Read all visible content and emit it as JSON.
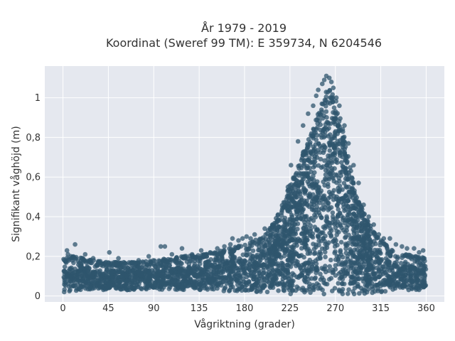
{
  "chart_data": {
    "type": "scatter",
    "title_line1": "År 1979 - 2019",
    "title_line2": "Koordinat (Sweref 99 TM): E 359734, N 6204546",
    "xlabel": "Vågriktning (grader)",
    "ylabel": "Signifikant våghöjd (m)",
    "xlim": [
      -18,
      378
    ],
    "ylim": [
      -0.03,
      1.16
    ],
    "xticks": [
      {
        "value": 0,
        "label": "0"
      },
      {
        "value": 45,
        "label": "45"
      },
      {
        "value": 90,
        "label": "90"
      },
      {
        "value": 135,
        "label": "135"
      },
      {
        "value": 180,
        "label": "180"
      },
      {
        "value": 225,
        "label": "225"
      },
      {
        "value": 270,
        "label": "270"
      },
      {
        "value": 315,
        "label": "315"
      },
      {
        "value": 360,
        "label": "360"
      }
    ],
    "yticks": [
      {
        "value": 0,
        "label": "0"
      },
      {
        "value": 0.2,
        "label": "0,2"
      },
      {
        "value": 0.4,
        "label": "0,4"
      },
      {
        "value": 0.6,
        "label": "0,6"
      },
      {
        "value": 0.8,
        "label": "0,8"
      },
      {
        "value": 1,
        "label": "1"
      }
    ],
    "grid": true,
    "colors": {
      "marker": "#2f556d",
      "plot_bg": "#e5e8ef",
      "grid": "#ffffff"
    },
    "envelope": {
      "x": [
        0,
        10,
        20,
        30,
        45,
        60,
        75,
        90,
        105,
        120,
        135,
        150,
        165,
        180,
        190,
        200,
        210,
        220,
        230,
        240,
        250,
        255,
        260,
        265,
        270,
        275,
        280,
        285,
        290,
        300,
        310,
        320,
        330,
        340,
        350,
        360
      ],
      "y_upper": [
        0.19,
        0.2,
        0.19,
        0.18,
        0.17,
        0.17,
        0.17,
        0.18,
        0.19,
        0.2,
        0.21,
        0.22,
        0.24,
        0.26,
        0.28,
        0.31,
        0.38,
        0.5,
        0.62,
        0.75,
        0.88,
        0.95,
        1.02,
        1.07,
        1.0,
        0.9,
        0.78,
        0.65,
        0.52,
        0.4,
        0.31,
        0.26,
        0.22,
        0.21,
        0.2,
        0.19
      ],
      "y_lower": [
        0.02,
        0.02,
        0.03,
        0.03,
        0.03,
        0.03,
        0.03,
        0.03,
        0.03,
        0.03,
        0.03,
        0.03,
        0.02,
        0.02,
        0.02,
        0.02,
        0.02,
        0.01,
        0.01,
        0.01,
        0.01,
        0.01,
        0.01,
        0.01,
        0.01,
        0.01,
        0.01,
        0.01,
        0.01,
        0.01,
        0.02,
        0.02,
        0.03,
        0.03,
        0.03,
        0.03
      ]
    },
    "outliers": [
      [
        4,
        0.23
      ],
      [
        5,
        0.21
      ],
      [
        8,
        0.2
      ],
      [
        12,
        0.26
      ],
      [
        22,
        0.21
      ],
      [
        30,
        0.19
      ],
      [
        46,
        0.22
      ],
      [
        55,
        0.19
      ],
      [
        75,
        0.18
      ],
      [
        85,
        0.2
      ],
      [
        97,
        0.25
      ],
      [
        101,
        0.25
      ],
      [
        108,
        0.21
      ],
      [
        118,
        0.24
      ],
      [
        128,
        0.21
      ],
      [
        137,
        0.23
      ],
      [
        146,
        0.22
      ],
      [
        153,
        0.24
      ],
      [
        160,
        0.25
      ],
      [
        166,
        0.26
      ],
      [
        168,
        0.29
      ],
      [
        174,
        0.28
      ],
      [
        178,
        0.29
      ],
      [
        182,
        0.3
      ],
      [
        186,
        0.29
      ],
      [
        190,
        0.31
      ],
      [
        200,
        0.34
      ],
      [
        208,
        0.35
      ],
      [
        214,
        0.38
      ],
      [
        219,
        0.45
      ],
      [
        223,
        0.55
      ],
      [
        226,
        0.66
      ],
      [
        233,
        0.78
      ],
      [
        238,
        0.86
      ],
      [
        243,
        0.92
      ],
      [
        248,
        0.96
      ],
      [
        251,
        1.01
      ],
      [
        253,
        1.04
      ],
      [
        257,
        1.07
      ],
      [
        259,
        1.09
      ],
      [
        261,
        1.11
      ],
      [
        264,
        1.1
      ],
      [
        266,
        1.08
      ],
      [
        268,
        1.05
      ],
      [
        271,
        1.0
      ],
      [
        274,
        0.96
      ],
      [
        279,
        0.86
      ],
      [
        283,
        0.77
      ],
      [
        288,
        0.66
      ],
      [
        293,
        0.57
      ],
      [
        298,
        0.46
      ],
      [
        303,
        0.4
      ],
      [
        308,
        0.36
      ],
      [
        313,
        0.31
      ],
      [
        318,
        0.29
      ],
      [
        324,
        0.29
      ],
      [
        330,
        0.26
      ],
      [
        336,
        0.25
      ],
      [
        341,
        0.24
      ],
      [
        348,
        0.24
      ],
      [
        353,
        0.22
      ],
      [
        357,
        0.23
      ]
    ]
  }
}
